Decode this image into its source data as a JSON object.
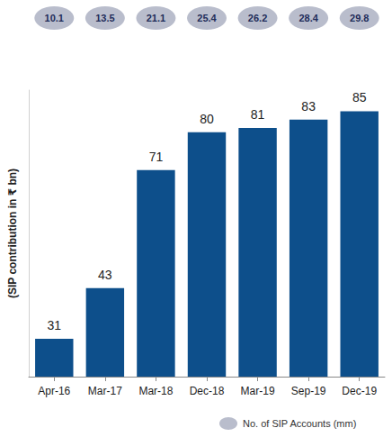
{
  "chart_data": {
    "type": "bar",
    "y_label": "(SIP contribution in ₹ bn)",
    "categories": [
      "Apr-16",
      "Mar-17",
      "Mar-18",
      "Dec-18",
      "Mar-19",
      "Sep-19",
      "Dec-19"
    ],
    "values": [
      31,
      43,
      71,
      80,
      81,
      83,
      85
    ],
    "color": "#0d4f8b",
    "data_labels": true,
    "ylim": [
      22,
      90
    ],
    "grid": false,
    "tick_labels": "x",
    "accounts": {
      "name": "No. of SIP Accounts (mm)",
      "color": "#b9bdcc",
      "values": [
        10.1,
        13.5,
        21.1,
        25.4,
        26.2,
        28.4,
        29.8
      ]
    }
  }
}
